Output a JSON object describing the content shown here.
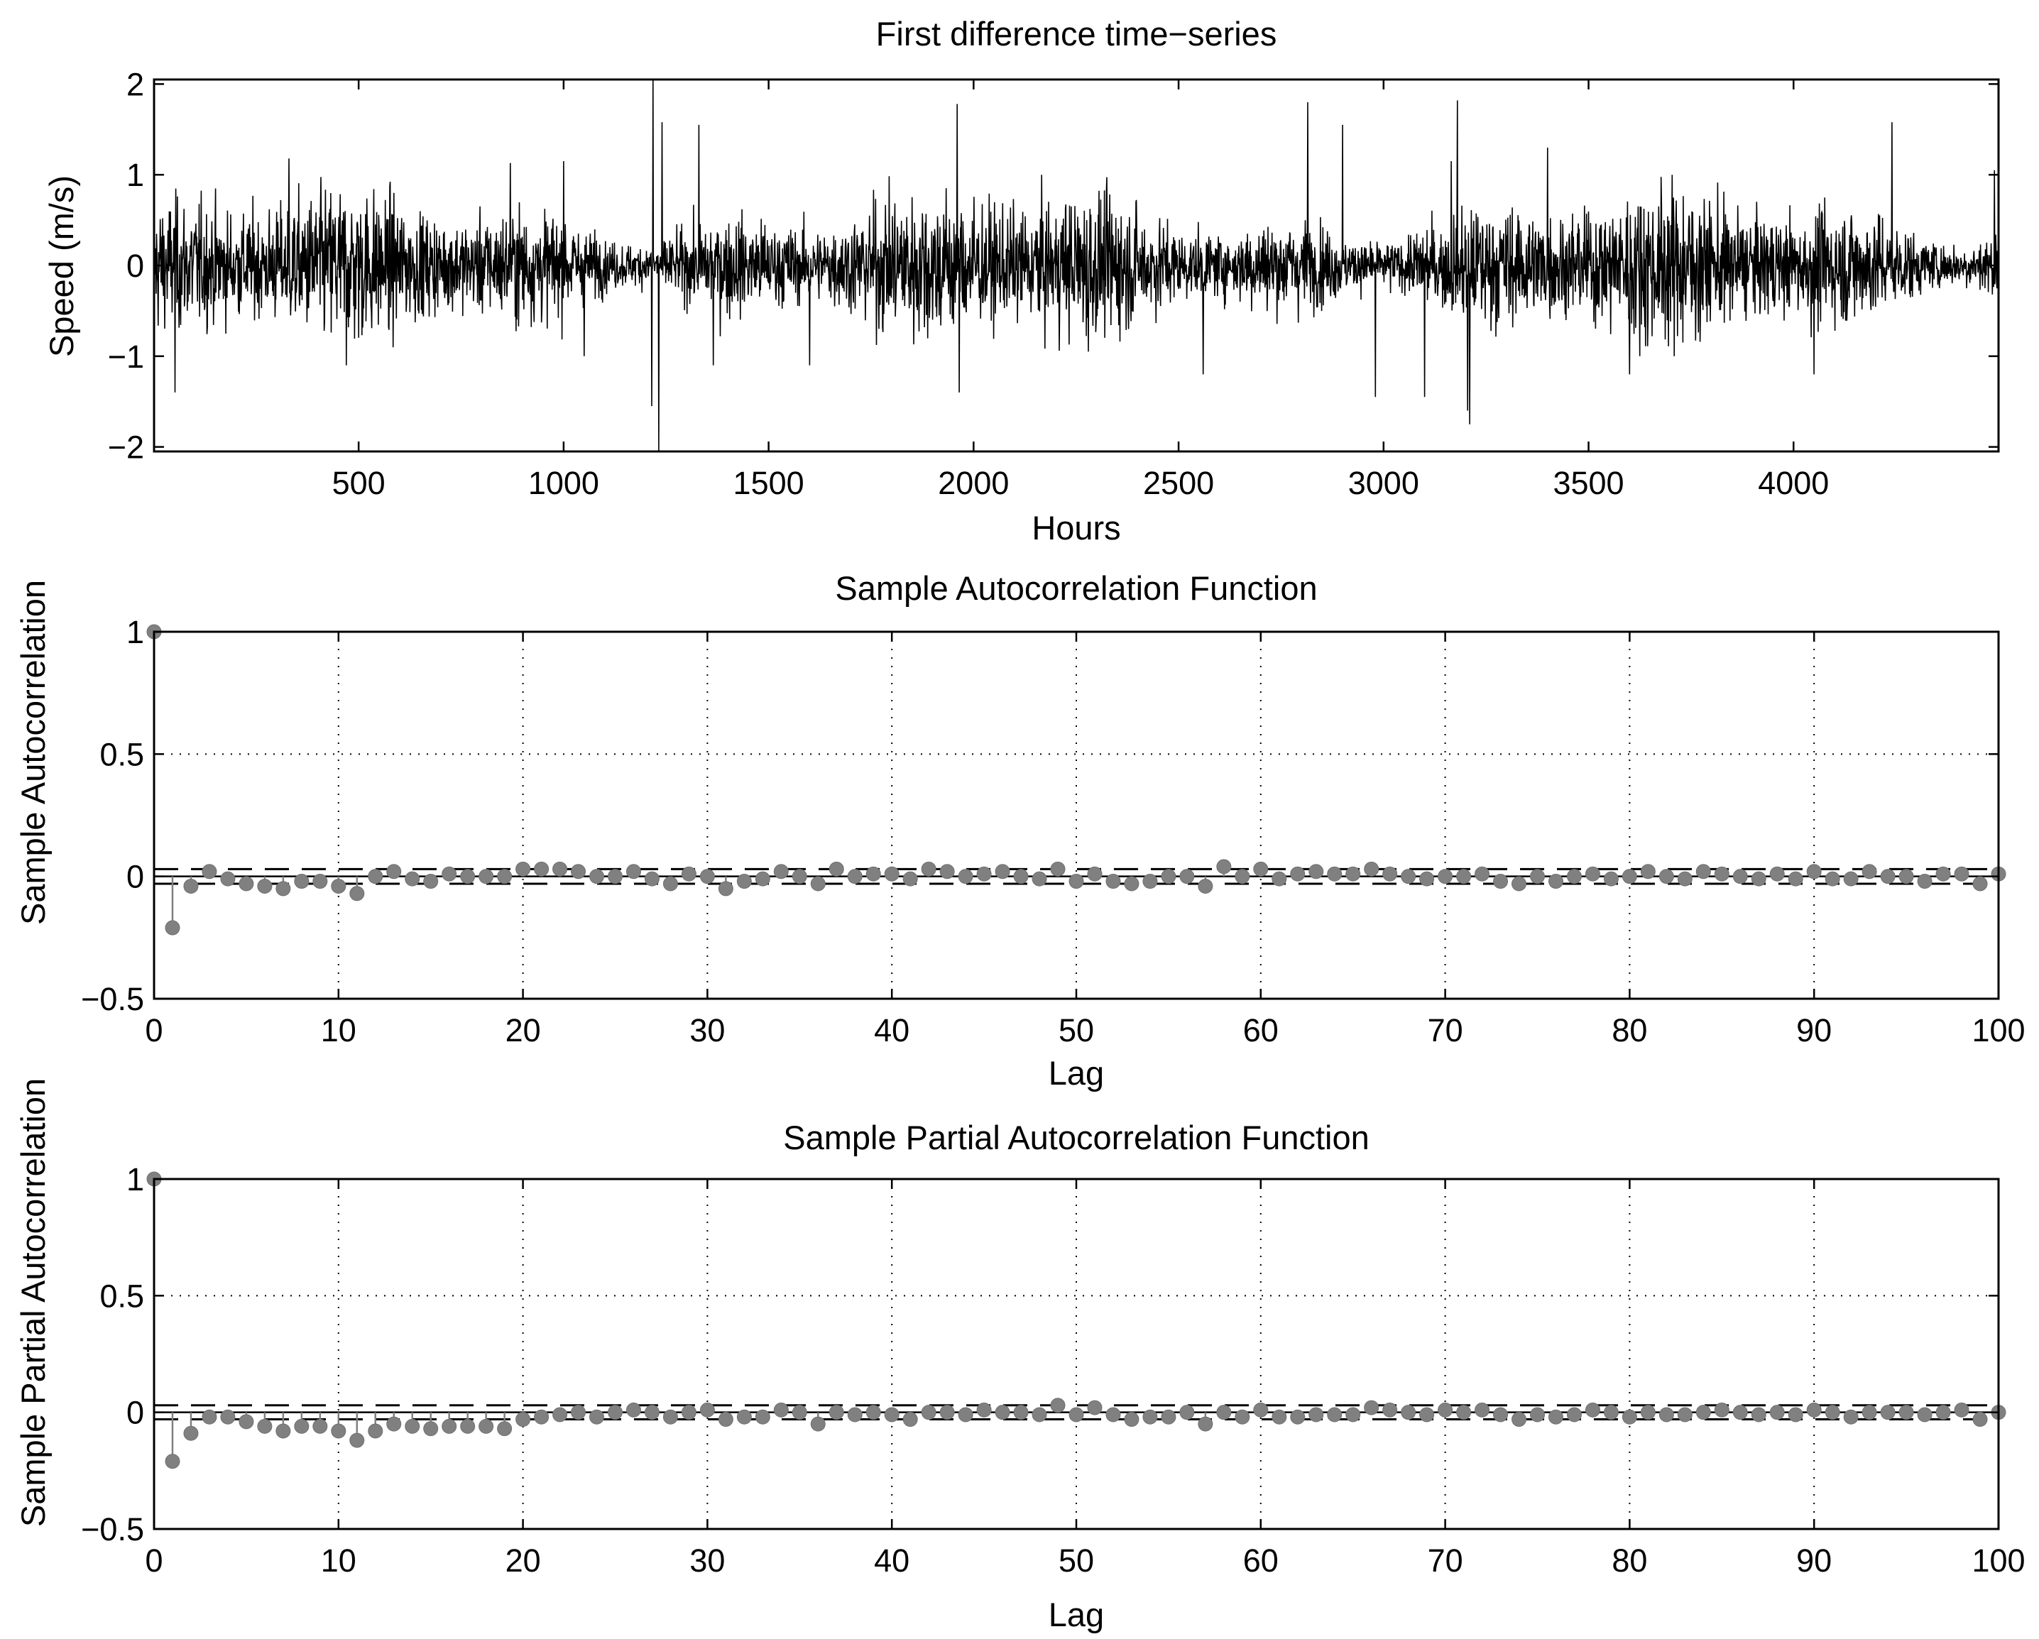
{
  "chart_data": [
    {
      "type": "line",
      "title": "First difference time−series",
      "xlabel": "Hours",
      "ylabel": "Speed (m/s)",
      "xlim": [
        1,
        4500
      ],
      "ylim": [
        -2.05,
        2.05
      ],
      "xticks": [
        500,
        1000,
        1500,
        2000,
        2500,
        3000,
        3500,
        4000
      ],
      "xticklabels": [
        "500",
        "1000",
        "1500",
        "2000",
        "2500",
        "3000",
        "3500",
        "4000"
      ],
      "yticks": [
        -2,
        -1,
        0,
        1,
        2
      ],
      "yticklabels": [
        "−2",
        "−1",
        "0",
        "1",
        "2"
      ],
      "grid": false,
      "color": "#000000",
      "n_points": 4500,
      "noise_std": 0.27,
      "spikes": [
        {
          "x": 52,
          "y": -1.4
        },
        {
          "x": 330,
          "y": 1.18
        },
        {
          "x": 470,
          "y": -1.1
        },
        {
          "x": 870,
          "y": 1.13
        },
        {
          "x": 1000,
          "y": 1.15
        },
        {
          "x": 1050,
          "y": -1.0
        },
        {
          "x": 1215,
          "y": -1.55
        },
        {
          "x": 1218,
          "y": 2.05
        },
        {
          "x": 1232,
          "y": -2.05
        },
        {
          "x": 1240,
          "y": 1.58
        },
        {
          "x": 1330,
          "y": 1.55
        },
        {
          "x": 1365,
          "y": -1.1
        },
        {
          "x": 1600,
          "y": -1.1
        },
        {
          "x": 1960,
          "y": 1.78
        },
        {
          "x": 1965,
          "y": -1.4
        },
        {
          "x": 2280,
          "y": -0.95
        },
        {
          "x": 2560,
          "y": -1.2
        },
        {
          "x": 2815,
          "y": 1.8
        },
        {
          "x": 2900,
          "y": 1.55
        },
        {
          "x": 2980,
          "y": -1.45
        },
        {
          "x": 3100,
          "y": -1.45
        },
        {
          "x": 3165,
          "y": 1.15
        },
        {
          "x": 3180,
          "y": 1.82
        },
        {
          "x": 3205,
          "y": -1.6
        },
        {
          "x": 3210,
          "y": -1.75
        },
        {
          "x": 3400,
          "y": 1.3
        },
        {
          "x": 3600,
          "y": -1.2
        },
        {
          "x": 4050,
          "y": -1.2
        },
        {
          "x": 4240,
          "y": 1.58
        },
        {
          "x": 4490,
          "y": 1.05
        }
      ]
    },
    {
      "type": "stem",
      "title": "Sample Autocorrelation Function",
      "xlabel": "Lag",
      "ylabel": "Sample Autocorrelation",
      "xlim": [
        0,
        100
      ],
      "ylim": [
        -0.5,
        1
      ],
      "xticks": [
        0,
        10,
        20,
        30,
        40,
        50,
        60,
        70,
        80,
        90,
        100
      ],
      "xticklabels": [
        "0",
        "10",
        "20",
        "30",
        "40",
        "50",
        "60",
        "70",
        "80",
        "90",
        "100"
      ],
      "yticks": [
        -0.5,
        0,
        0.5,
        1
      ],
      "yticklabels": [
        "−0.5",
        "0",
        "0.5",
        "1"
      ],
      "grid": true,
      "marker_color": "#808080",
      "bounds": [
        0.03,
        -0.03
      ],
      "values": [
        1.0,
        -0.21,
        -0.04,
        0.02,
        -0.01,
        -0.03,
        -0.04,
        -0.05,
        -0.02,
        -0.02,
        -0.04,
        -0.07,
        0.0,
        0.02,
        -0.01,
        -0.02,
        0.01,
        0.0,
        0.0,
        0.0,
        0.03,
        0.03,
        0.03,
        0.02,
        0.0,
        0.0,
        0.02,
        -0.01,
        -0.03,
        0.01,
        0.0,
        -0.05,
        -0.02,
        -0.01,
        0.02,
        0.0,
        -0.03,
        0.03,
        0.0,
        0.01,
        0.01,
        -0.01,
        0.03,
        0.02,
        0.0,
        0.01,
        0.02,
        0.0,
        -0.01,
        0.03,
        -0.02,
        0.01,
        -0.02,
        -0.03,
        -0.02,
        0.0,
        0.0,
        -0.04,
        0.04,
        0.0,
        0.03,
        -0.01,
        0.01,
        0.02,
        0.01,
        0.01,
        0.03,
        0.01,
        0.0,
        -0.01,
        0.0,
        0.0,
        0.01,
        -0.02,
        -0.03,
        0.0,
        -0.02,
        0.0,
        0.01,
        -0.01,
        0.0,
        0.02,
        0.0,
        -0.01,
        0.02,
        0.01,
        0.0,
        -0.01,
        0.01,
        -0.01,
        0.02,
        -0.01,
        -0.01,
        0.02,
        0.0,
        0.0,
        -0.02,
        0.01,
        0.01,
        -0.03,
        0.01
      ]
    },
    {
      "type": "stem",
      "title": "Sample Partial Autocorrelation Function",
      "xlabel": "Lag",
      "ylabel": "Sample Partial Autocorrelation",
      "xlim": [
        0,
        100
      ],
      "ylim": [
        -0.5,
        1
      ],
      "xticks": [
        0,
        10,
        20,
        30,
        40,
        50,
        60,
        70,
        80,
        90,
        100
      ],
      "xticklabels": [
        "0",
        "10",
        "20",
        "30",
        "40",
        "50",
        "60",
        "70",
        "80",
        "90",
        "100"
      ],
      "yticks": [
        -0.5,
        0,
        0.5,
        1
      ],
      "yticklabels": [
        "−0.5",
        "0",
        "0.5",
        "1"
      ],
      "grid": true,
      "marker_color": "#808080",
      "bounds": [
        0.03,
        -0.03
      ],
      "values": [
        1.0,
        -0.21,
        -0.09,
        -0.02,
        -0.02,
        -0.04,
        -0.06,
        -0.08,
        -0.06,
        -0.06,
        -0.08,
        -0.12,
        -0.08,
        -0.05,
        -0.06,
        -0.07,
        -0.06,
        -0.06,
        -0.06,
        -0.07,
        -0.03,
        -0.02,
        -0.01,
        0.0,
        -0.02,
        0.0,
        0.01,
        0.0,
        -0.02,
        0.0,
        0.01,
        -0.03,
        -0.02,
        -0.02,
        0.01,
        0.0,
        -0.05,
        0.0,
        -0.01,
        0.0,
        -0.01,
        -0.03,
        0.0,
        0.0,
        -0.01,
        0.01,
        0.0,
        0.0,
        -0.01,
        0.03,
        -0.01,
        0.02,
        -0.01,
        -0.03,
        -0.02,
        -0.02,
        0.0,
        -0.05,
        0.0,
        -0.02,
        0.01,
        -0.02,
        -0.02,
        -0.01,
        -0.01,
        -0.01,
        0.02,
        0.01,
        0.0,
        -0.01,
        0.01,
        0.0,
        0.01,
        -0.01,
        -0.03,
        -0.01,
        -0.02,
        -0.01,
        0.01,
        0.0,
        -0.02,
        0.0,
        -0.01,
        -0.01,
        0.0,
        0.01,
        0.0,
        -0.01,
        0.0,
        -0.01,
        0.01,
        0.0,
        -0.02,
        0.0,
        0.0,
        0.0,
        -0.01,
        0.0,
        0.01,
        -0.03,
        0.0
      ]
    }
  ]
}
